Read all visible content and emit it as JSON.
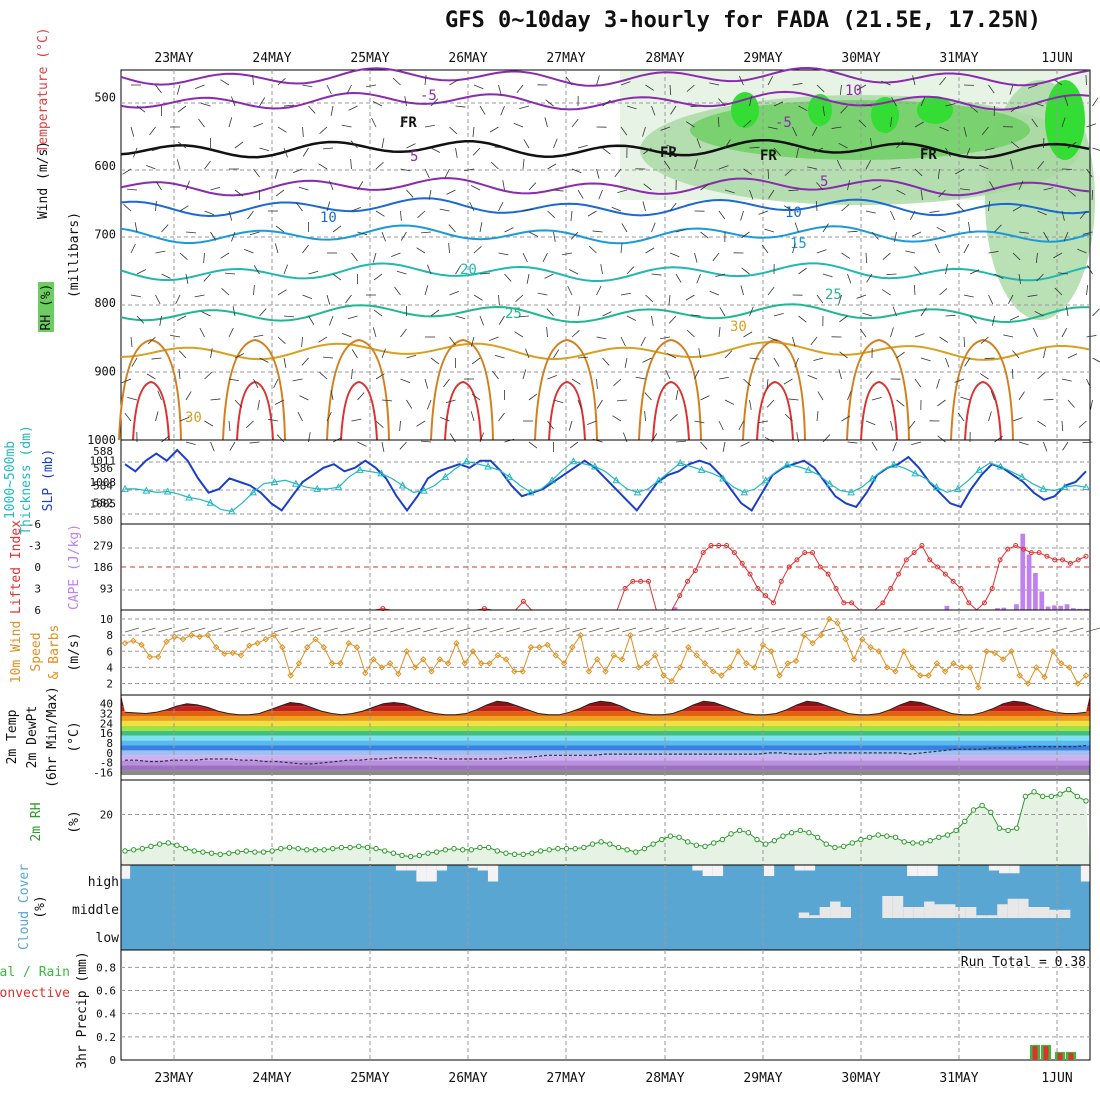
{
  "title": "GFS 0~10day 3-hourly for FADA (21.5E, 17.25N)",
  "colors": {
    "grid": "#9a9a9a",
    "rh_light": "#e7f3e5",
    "rh_mid": "#a9d8a3",
    "rh_strong": "#6ccd60",
    "rh_bright": "#33dd33",
    "slp": "#1a3fc8",
    "thickness": "#22b8c0",
    "lifted_index": "#e03030",
    "cape": "#c080f0",
    "wind": "#e09020",
    "cloud": "#5aa6d2",
    "rh2m": "#2a9a2a",
    "precip_total": "#3cb83c",
    "precip_conv": "#e03030"
  },
  "chart_data": [
    {
      "type": "line",
      "panel": "upper-air",
      "dates": [
        "23MAY",
        "24MAY",
        "25MAY",
        "26MAY",
        "27MAY",
        "28MAY",
        "29MAY",
        "30MAY",
        "31MAY",
        "1JUN"
      ],
      "ylabel": "(millibars)",
      "ylabels": [
        "RH (%)",
        "Temperature (°C)",
        "Wind (m/s)"
      ],
      "yticks": [
        500,
        600,
        700,
        800,
        900,
        1000
      ],
      "ylim": [
        460,
        1000
      ],
      "isotherms": [
        {
          "label": "-10",
          "pressure": 470,
          "color": "#8a2ab0"
        },
        {
          "label": "-5",
          "pressure": 505,
          "color": "#8a2ab0"
        },
        {
          "label": "FR",
          "pressure": 575,
          "color": "#111111"
        },
        {
          "label": "5",
          "pressure": 630,
          "color": "#8a2ab0"
        },
        {
          "label": "10",
          "pressure": 660,
          "color": "#1a6ad0"
        },
        {
          "label": "15",
          "pressure": 700,
          "color": "#1a9ad8"
        },
        {
          "label": "20",
          "pressure": 755,
          "color": "#20b8b0"
        },
        {
          "label": "25",
          "pressure": 815,
          "color": "#20b890"
        },
        {
          "label": "30",
          "pressure": 870,
          "color": "#d8a020"
        }
      ],
      "contour_labels": [
        "-10",
        "-5",
        "FR",
        "5",
        "10",
        "15",
        "20",
        "25",
        "30",
        "10",
        "30",
        "30"
      ]
    },
    {
      "type": "line",
      "panel": "pressure",
      "ylabel_left": "1000~500mb Thickness (dm)",
      "ylabel_right": "SLP (mb)",
      "thickness_ticks": [
        580,
        582,
        584,
        586,
        588
      ],
      "slp_ticks": [
        1005,
        1008,
        1011
      ],
      "slp_values": [
        1010.5,
        1009.5,
        1011,
        1012,
        1011,
        1012.5,
        1011,
        1008.5,
        1006.5,
        1007,
        1008.5,
        1008,
        1007.5,
        1006.5,
        1005,
        1004,
        1006,
        1008,
        1009,
        1010,
        1010.5,
        1009.5,
        1010,
        1011,
        1010,
        1008.5,
        1006,
        1004,
        1006,
        1008.5,
        1009.5,
        1010,
        1010.5,
        1010,
        1011,
        1011,
        1009.5,
        1007.5,
        1006,
        1006.5,
        1007,
        1008,
        1009,
        1010,
        1011,
        1010,
        1008.5,
        1007,
        1005.5,
        1004,
        1006,
        1008,
        1009,
        1009.5,
        1010.5,
        1011,
        1010.5,
        1009,
        1007,
        1005,
        1004,
        1006.5,
        1009,
        1010,
        1010.5,
        1011,
        1010,
        1008,
        1006,
        1005,
        1004.5,
        1006.5,
        1009,
        1010,
        1010.5,
        1011.5,
        1010,
        1008,
        1006.5,
        1005,
        1004.5,
        1007,
        1009,
        1010.5,
        1010,
        1009,
        1008,
        1006.5,
        1005.5,
        1006,
        1007.5,
        1008,
        1009.5
      ],
      "thickness_values": [
        583.6,
        583.6,
        583.4,
        583.2,
        583.3,
        583,
        582.6,
        582.4,
        582,
        581.2,
        581,
        582,
        583.2,
        584.2,
        584.4,
        584.6,
        584.2,
        583.8,
        583.6,
        583.6,
        583.8,
        585,
        585.8,
        585.6,
        585.4,
        584.8,
        584,
        583.2,
        583.4,
        584,
        585,
        586,
        586.8,
        586.5,
        586.2,
        585.8,
        585,
        584,
        583.2,
        583.6,
        584.6,
        585.8,
        586.8,
        586.5,
        586.2,
        585.6,
        584.6,
        583.6,
        583.2,
        583.6,
        584.6,
        585.6,
        586.6,
        586.2,
        585.8,
        585.4,
        584.8,
        583.8,
        583.2,
        583.6,
        584.6,
        585.6,
        586.4,
        586.2,
        585.8,
        585.2,
        584.2,
        583.4,
        583.2,
        583.8,
        584.8,
        585.8,
        586.4,
        586,
        585.4,
        584.8,
        583.8,
        583.2,
        583.6,
        584.6,
        585.8,
        586.6,
        586.2,
        585.6,
        585,
        584.2,
        583.6,
        583.4,
        583.8,
        584,
        583.8
      ],
      "series": [
        {
          "name": "1000~500mb Thickness (dm)"
        },
        {
          "name": "SLP (mb)"
        }
      ]
    },
    {
      "type": "bar",
      "panel": "stability",
      "ylabel_left": "Lifted Index",
      "ylabel_right": "CAPE (J/kg)",
      "li_ticks": [
        -6,
        -3,
        0,
        3,
        6
      ],
      "cape_ticks": [
        93,
        186,
        279
      ],
      "li_values": [
        6,
        6,
        6,
        6,
        6,
        6,
        6,
        6,
        6,
        6,
        6,
        6,
        6,
        6,
        6,
        6,
        6,
        6,
        6,
        6,
        6,
        6,
        6,
        6,
        6,
        6,
        6,
        6,
        6,
        6,
        6,
        6,
        6,
        5.8,
        6,
        6,
        6,
        6,
        6,
        6,
        6,
        6,
        6,
        6,
        6,
        6,
        5.8,
        6,
        6,
        6,
        6,
        4.8,
        6,
        6,
        6,
        6,
        6,
        6,
        6,
        6,
        6,
        6,
        6,
        6,
        3,
        2,
        2,
        2,
        6,
        6,
        6,
        4,
        2,
        0.5,
        -2,
        -3,
        -3,
        -3,
        -2,
        -0.5,
        1,
        3,
        4,
        5,
        2,
        0,
        -1,
        -2,
        -2,
        0,
        1,
        3,
        5,
        5,
        6,
        6,
        6,
        5,
        3,
        1,
        -1,
        -2,
        -3,
        -1,
        0,
        1,
        2,
        3,
        5,
        6,
        5,
        3,
        -1,
        -2.5,
        -3,
        -2.5,
        -2,
        -2,
        -1.5,
        -1,
        -1,
        -0.5,
        -1,
        -1.5
      ],
      "cape_values": [
        0,
        0,
        0,
        0,
        0,
        0,
        0,
        0,
        0,
        0,
        0,
        0,
        0,
        0,
        0,
        0,
        0,
        0,
        0,
        0,
        0,
        0,
        0,
        0,
        0,
        0,
        0,
        0,
        0,
        0,
        0,
        0,
        0,
        0,
        0,
        0,
        0,
        0,
        0,
        0,
        0,
        0,
        0,
        0,
        0,
        0,
        0,
        0,
        0,
        0,
        0,
        0,
        0,
        0,
        0,
        0,
        0,
        0,
        0,
        0,
        0,
        0,
        0,
        0,
        0,
        0,
        0,
        0,
        0,
        0,
        0,
        0,
        0,
        0,
        0,
        0,
        0,
        0,
        0,
        0,
        0,
        0,
        0,
        0,
        0,
        0,
        0,
        12,
        0,
        0,
        0,
        0,
        0,
        0,
        0,
        0,
        0,
        0,
        0,
        0,
        0,
        0,
        0,
        0,
        0,
        0,
        0,
        0,
        0,
        0,
        0,
        0,
        0,
        0,
        0,
        0,
        0,
        0,
        0,
        0,
        0,
        0,
        0,
        0,
        0,
        0,
        0,
        0,
        0,
        0,
        18,
        0,
        0,
        0,
        0,
        0,
        0,
        0,
        8,
        10,
        0,
        25,
        330,
        240,
        160,
        80,
        15,
        20,
        18,
        25,
        8,
        5,
        5
      ],
      "series": [
        {
          "name": "Lifted Index"
        },
        {
          "name": "CAPE (J/kg)"
        }
      ]
    },
    {
      "type": "line",
      "panel": "wind10m",
      "ylabel": "10m Wind Speed & Barbs (m/s)",
      "yticks": [
        2,
        4,
        6,
        8,
        10
      ],
      "values": [
        7,
        7.3,
        6.8,
        5.3,
        5.3,
        7.2,
        7.8,
        7.5,
        8,
        7.8,
        8,
        6.5,
        5.7,
        5.8,
        5.5,
        6.7,
        7,
        7.5,
        8,
        6.5,
        3,
        4.5,
        6.5,
        7.5,
        6.5,
        4.5,
        4.5,
        7,
        6.5,
        3.3,
        5,
        4,
        4.5,
        3.2,
        6,
        4,
        5,
        3.5,
        5,
        4.5,
        7,
        4.5,
        6,
        4.5,
        4.5,
        5.5,
        5,
        3.5,
        3.5,
        6.5,
        6.5,
        6.8,
        5.5,
        4.5,
        6.5,
        8,
        3.5,
        5,
        3.5,
        5.5,
        5,
        8,
        4,
        4.5,
        5.5,
        3,
        2.3,
        4,
        6.5,
        5.5,
        4.5,
        3.5,
        3,
        4,
        6,
        4.5,
        4,
        6.8,
        6,
        3,
        4.5,
        4.8,
        8,
        7,
        8,
        10,
        9.5,
        7.5,
        5,
        7.5,
        6.5,
        6,
        4,
        3.5,
        6,
        4,
        3,
        3,
        4.5,
        3.5,
        4.5,
        4,
        4,
        1.5,
        6,
        5.8,
        5,
        6,
        3,
        2,
        4,
        2.8,
        6,
        4.5,
        4,
        2,
        3
      ],
      "series": [
        {
          "name": "10m Wind Speed"
        }
      ]
    },
    {
      "type": "area",
      "panel": "temp2m",
      "ylabel": "2m Temp / 2m DewPt (6hr Min/Max) (°C)",
      "yticks": [
        -16,
        -8,
        0,
        8,
        16,
        24,
        32,
        40
      ],
      "temp_values": [
        33,
        32.5,
        32,
        33,
        35,
        38,
        40,
        39,
        37,
        34,
        32,
        31,
        31,
        32,
        35,
        38,
        41,
        40,
        37,
        34,
        32,
        31,
        32,
        34,
        37,
        40,
        41,
        40,
        37,
        34,
        32,
        31,
        31,
        32,
        35,
        39,
        42,
        41,
        38,
        35,
        32,
        31,
        31,
        33,
        36,
        40,
        42,
        41,
        38,
        34,
        32,
        31,
        31,
        32,
        35,
        39,
        42,
        41,
        38,
        35,
        32,
        31,
        31,
        32,
        35,
        39,
        42,
        41,
        38,
        35,
        32,
        31,
        31,
        32,
        35,
        39,
        42,
        41,
        38,
        35,
        32,
        31,
        31,
        33,
        36,
        40,
        42,
        41,
        38,
        35,
        33,
        32,
        32,
        33
      ],
      "dewpt_values": [
        -6,
        -6,
        -7,
        -7,
        -6,
        -6,
        -6,
        -5,
        -5,
        -5,
        -6,
        -6,
        -7,
        -7,
        -8,
        -9,
        -9,
        -8,
        -7,
        -6,
        -6,
        -5,
        -5,
        -4,
        -4,
        -4,
        -4,
        -5,
        -5,
        -5,
        -5,
        -5,
        -5,
        -4,
        -4,
        -3,
        -2,
        -2,
        -2,
        -2,
        -2,
        -1,
        -1,
        -1,
        -1,
        -1,
        -1,
        -1,
        -1,
        -1,
        -1,
        -1,
        -1,
        -1,
        -1,
        0,
        0,
        -1,
        -1,
        -1,
        0,
        0,
        0,
        0,
        0,
        0,
        0,
        -1,
        0,
        1,
        2,
        3,
        3,
        3,
        4,
        4,
        4,
        5,
        5,
        5,
        5,
        5,
        6
      ],
      "series": [
        {
          "name": "2m Temp"
        },
        {
          "name": "2m DewPt"
        }
      ]
    },
    {
      "type": "area",
      "panel": "rh2m",
      "ylabel": "2m RH (%)",
      "yticks": [
        20
      ],
      "values": [
        4,
        4.5,
        5,
        6,
        7,
        7.5,
        6.5,
        5,
        4,
        3.5,
        3,
        2.5,
        3,
        3.5,
        4,
        3.5,
        3.5,
        4,
        5,
        5.5,
        5,
        4.5,
        4.5,
        4.5,
        5,
        5.5,
        5.5,
        6,
        5.5,
        5,
        4,
        3,
        2,
        1.5,
        2,
        3,
        3.5,
        4.5,
        5,
        4.5,
        4.5,
        5.5,
        5.5,
        4,
        3,
        2.5,
        2.5,
        3,
        4,
        4.5,
        5,
        5,
        5,
        5.5,
        7,
        8,
        7,
        5.5,
        4.5,
        3.5,
        5,
        7,
        9,
        10.5,
        10,
        8,
        6.5,
        6,
        7.5,
        9,
        11.5,
        13,
        12,
        9,
        7,
        8.5,
        10.5,
        12,
        13,
        12,
        10,
        7,
        5.5,
        6,
        7.5,
        9,
        10,
        11,
        10.5,
        10,
        8,
        7.5,
        7.5,
        8.5,
        10,
        11,
        13,
        17,
        22,
        24,
        21,
        14,
        13,
        14,
        28,
        30,
        28,
        28,
        29,
        31,
        28,
        26
      ],
      "series": [
        {
          "name": "2m RH"
        }
      ]
    },
    {
      "type": "bar",
      "panel": "cloud",
      "ylabel": "Cloud Cover (%)",
      "levels": [
        "high",
        "middle",
        "low"
      ],
      "high_values": [
        15,
        40,
        40,
        40,
        40,
        40,
        40,
        40,
        40,
        40,
        40,
        40,
        40,
        40,
        40,
        40,
        40,
        40,
        40,
        40,
        40,
        40,
        40,
        40,
        40,
        40,
        40,
        30,
        30,
        10,
        10,
        30,
        40,
        40,
        35,
        30,
        10,
        40,
        40,
        40,
        40,
        40,
        40,
        40,
        40,
        40,
        40,
        40,
        40,
        40,
        40,
        40,
        40,
        40,
        40,
        40,
        30,
        20,
        20,
        40,
        40,
        40,
        40,
        20,
        40,
        40,
        30,
        30,
        40,
        40,
        40,
        40,
        40,
        40,
        40,
        40,
        40,
        20,
        20,
        20,
        40,
        40,
        40,
        40,
        40,
        30,
        25,
        25,
        40,
        40,
        40,
        40,
        40,
        40,
        10
      ],
      "middle_values": [
        0,
        0,
        0,
        0,
        0,
        0,
        0,
        0,
        0,
        0,
        0,
        0,
        0,
        0,
        0,
        0,
        0,
        0,
        0,
        0,
        0,
        0,
        0,
        0,
        0,
        0,
        0,
        0,
        0,
        0,
        0,
        0,
        0,
        0,
        0,
        0,
        0,
        0,
        0,
        0,
        0,
        0,
        0,
        0,
        0,
        0,
        0,
        0,
        0,
        0,
        0,
        0,
        0,
        0,
        0,
        0,
        0,
        0,
        0,
        0,
        0,
        0,
        0,
        0,
        0,
        10,
        5,
        20,
        30,
        20,
        0,
        0,
        0,
        40,
        40,
        20,
        20,
        30,
        25,
        25,
        20,
        20,
        5,
        5,
        25,
        35,
        35,
        20,
        20,
        15,
        15,
        0,
        0
      ],
      "series": [
        {
          "name": "high"
        },
        {
          "name": "middle"
        },
        {
          "name": "low"
        }
      ]
    },
    {
      "type": "bar",
      "panel": "precip",
      "ylabel": "3hr Precip (mm)",
      "legend": [
        "Total / Rain",
        "Convective"
      ],
      "run_total_label": "Run Total = 0.38",
      "yticks": [
        0,
        0.2,
        0.4,
        0.6,
        0.8
      ],
      "ylim": [
        0,
        0.95
      ],
      "total_values": [
        0.13,
        0.13,
        0.07,
        0.07
      ],
      "conv_values": [
        0.12,
        0.12,
        0.06,
        0.06
      ],
      "series": [
        {
          "name": "Total / Rain"
        },
        {
          "name": "Convective"
        }
      ]
    }
  ]
}
